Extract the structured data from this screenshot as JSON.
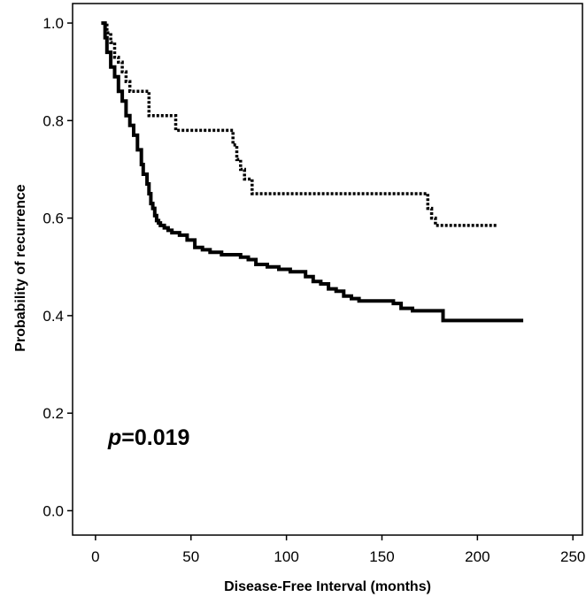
{
  "chart_data": {
    "type": "line",
    "xlabel": "Disease-Free Interval (months)",
    "ylabel": "Probability of recurrence",
    "xlim": [
      -12,
      255
    ],
    "ylim": [
      -0.05,
      1.04
    ],
    "x_ticks": [
      0,
      50,
      100,
      150,
      200,
      250
    ],
    "x_tick_labels": [
      "0",
      "50",
      "100",
      "150",
      "200",
      "250"
    ],
    "y_ticks": [
      0.0,
      0.2,
      0.4,
      0.6,
      0.8,
      1.0
    ],
    "y_tick_labels": [
      "0.0",
      "0.2",
      "0.4",
      "0.6",
      "0.8",
      "1.0"
    ],
    "grid": false,
    "legend": "none",
    "annotation": {
      "prefix": "p",
      "text": "=0.019"
    },
    "series": [
      {
        "style": "solid",
        "color": "#000000",
        "x": [
          3,
          5,
          6,
          8,
          10,
          12,
          14,
          16,
          18,
          20,
          22,
          24,
          25,
          27,
          28,
          29,
          30,
          31,
          32,
          33,
          34,
          36,
          38,
          40,
          44,
          48,
          52,
          56,
          60,
          66,
          70,
          76,
          80,
          84,
          90,
          96,
          102,
          110,
          114,
          118,
          122,
          126,
          130,
          134,
          138,
          144,
          156,
          160,
          166,
          172,
          176,
          182,
          224
        ],
        "y": [
          1.0,
          0.97,
          0.94,
          0.91,
          0.89,
          0.86,
          0.84,
          0.81,
          0.79,
          0.77,
          0.74,
          0.71,
          0.69,
          0.67,
          0.65,
          0.63,
          0.62,
          0.605,
          0.595,
          0.59,
          0.585,
          0.58,
          0.575,
          0.57,
          0.565,
          0.555,
          0.54,
          0.535,
          0.53,
          0.525,
          0.525,
          0.52,
          0.515,
          0.505,
          0.5,
          0.495,
          0.49,
          0.48,
          0.47,
          0.465,
          0.455,
          0.45,
          0.44,
          0.435,
          0.43,
          0.43,
          0.425,
          0.415,
          0.41,
          0.41,
          0.41,
          0.39,
          0.39
        ]
      },
      {
        "style": "dotted",
        "color": "#000000",
        "x": [
          4,
          6,
          8,
          10,
          12,
          14,
          16,
          18,
          24,
          28,
          42,
          72,
          74,
          76,
          78,
          82,
          174,
          176,
          178,
          210
        ],
        "y": [
          1.0,
          0.98,
          0.96,
          0.93,
          0.92,
          0.9,
          0.88,
          0.86,
          0.86,
          0.81,
          0.78,
          0.75,
          0.72,
          0.7,
          0.68,
          0.65,
          0.62,
          0.6,
          0.585,
          0.585
        ]
      }
    ]
  }
}
